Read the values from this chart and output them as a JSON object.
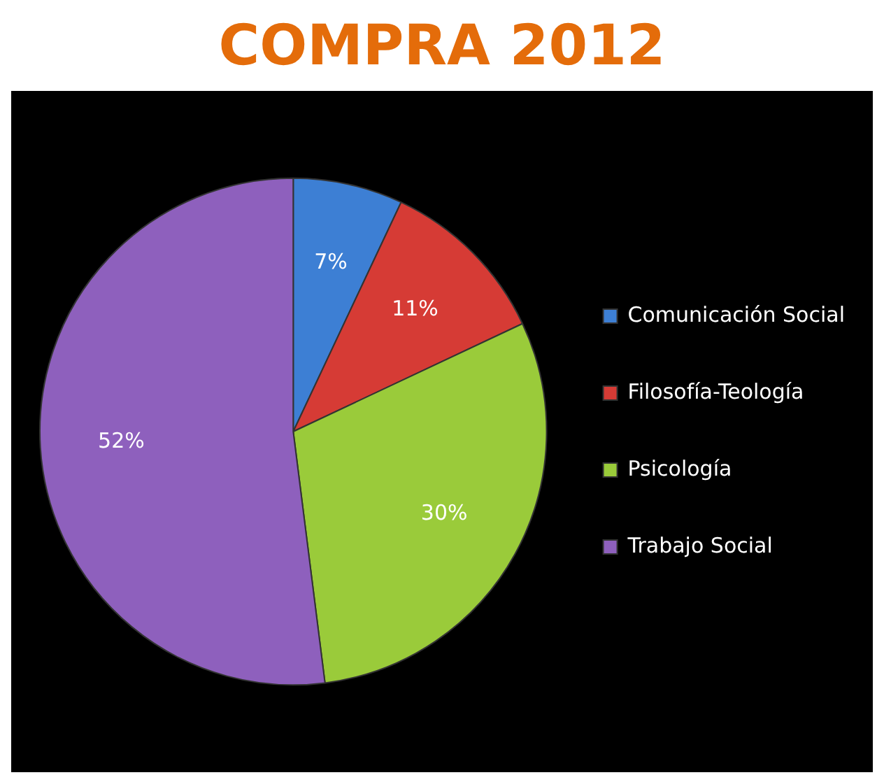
{
  "chart_data": {
    "type": "pie",
    "title": "COMPRA 2012",
    "categories": [
      "Comunicación Social",
      "Filosofía-Teología",
      "Psicología",
      "Trabajo Social"
    ],
    "values": [
      7,
      11,
      30,
      52
    ],
    "colors": [
      "#3d7fd4",
      "#d63b35",
      "#9acb3a",
      "#8e60bd"
    ],
    "value_labels": [
      "7%",
      "11%",
      "30%",
      "52%"
    ],
    "legend": "right"
  }
}
